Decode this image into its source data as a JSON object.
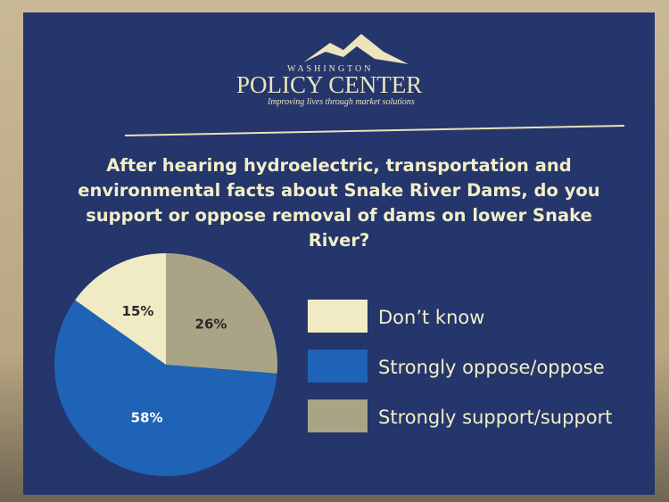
{
  "logo": {
    "top": "WASHINGTON",
    "name": "POLICY CENTER",
    "tagline": "Improving lives through market solutions"
  },
  "chart_data": {
    "type": "pie",
    "title": "After hearing hydroelectric, transportation and environmental facts about Snake River Dams, do you support or oppose removal of dams on lower Snake River?",
    "categories": [
      "Don’t know",
      "Strongly oppose/oppose",
      "Strongly support/support"
    ],
    "values": [
      15,
      58,
      26
    ],
    "value_labels": [
      "15%",
      "58%",
      "26%"
    ],
    "colors": [
      "#f0ebc4",
      "#1f63b7",
      "#aaa486"
    ]
  }
}
